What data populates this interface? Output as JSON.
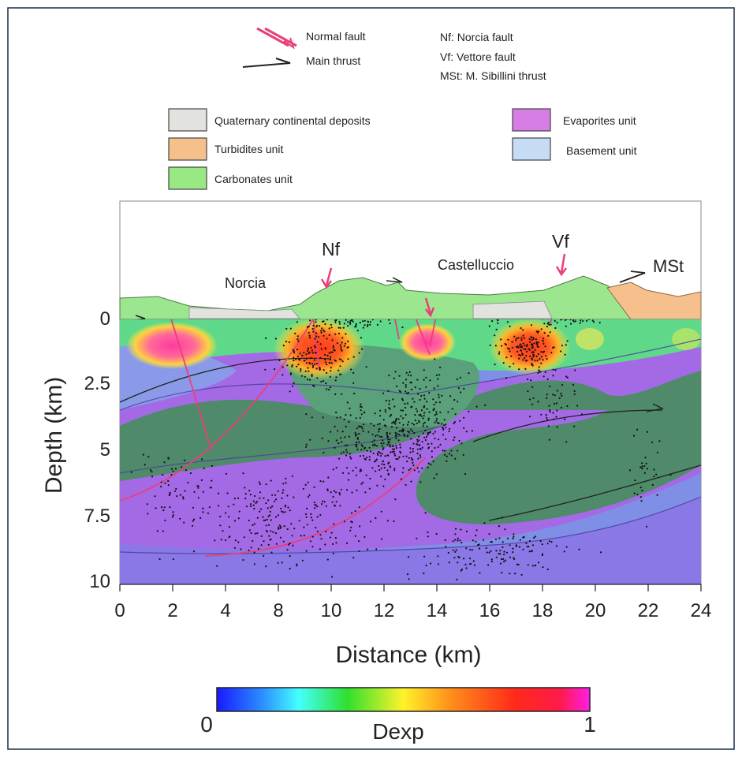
{
  "fault_legend": [
    {
      "label": "Normal fault",
      "color": "#e8407a"
    },
    {
      "label": "Main thrust",
      "color": "#222222"
    }
  ],
  "abbreviations": [
    "Nf: Norcia fault",
    "Vf: Vettore fault",
    "MSt: M. Sibillini thrust"
  ],
  "units_legend": [
    {
      "label": "Quaternary continental deposits",
      "color": "#e2e2de"
    },
    {
      "label": "Turbidites unit",
      "color": "#f6c08c"
    },
    {
      "label": "Carbonates unit",
      "color": "#98e884"
    },
    {
      "label": "Evaporites unit",
      "color": "#d77ee6"
    },
    {
      "label": "Basement unit",
      "color": "#c6dcf4"
    }
  ],
  "section_labels": {
    "norcia": "Norcia",
    "nf": "Nf",
    "castelluccio": "Castelluccio",
    "vf": "Vf",
    "mst": "MSt"
  },
  "axes": {
    "ylabel": "Depth (km)",
    "xlabel": "Distance (km)",
    "yticks": [
      "0",
      "2.5",
      "5",
      "7.5",
      "10"
    ],
    "xticks": [
      "0",
      "2",
      "4",
      "8",
      "10",
      "12",
      "14",
      "16",
      "18",
      "20",
      "22",
      "24"
    ]
  },
  "colorbar": {
    "title": "Dexp",
    "min_label": "0",
    "max_label": "1",
    "stops": [
      "#1a1aff",
      "#2a8cff",
      "#44ffff",
      "#2ee02e",
      "#fff22a",
      "#ff8c1a",
      "#ff2a1a",
      "#ff1ee6"
    ]
  },
  "colors": {
    "normal_fault": "#e8407a",
    "thrust": "#222222",
    "anomaly": "#ff4020",
    "carbonates_deep": "#4f8a6a",
    "evaporites": "#9a5fe0",
    "basement": "#7f8fe6"
  }
}
